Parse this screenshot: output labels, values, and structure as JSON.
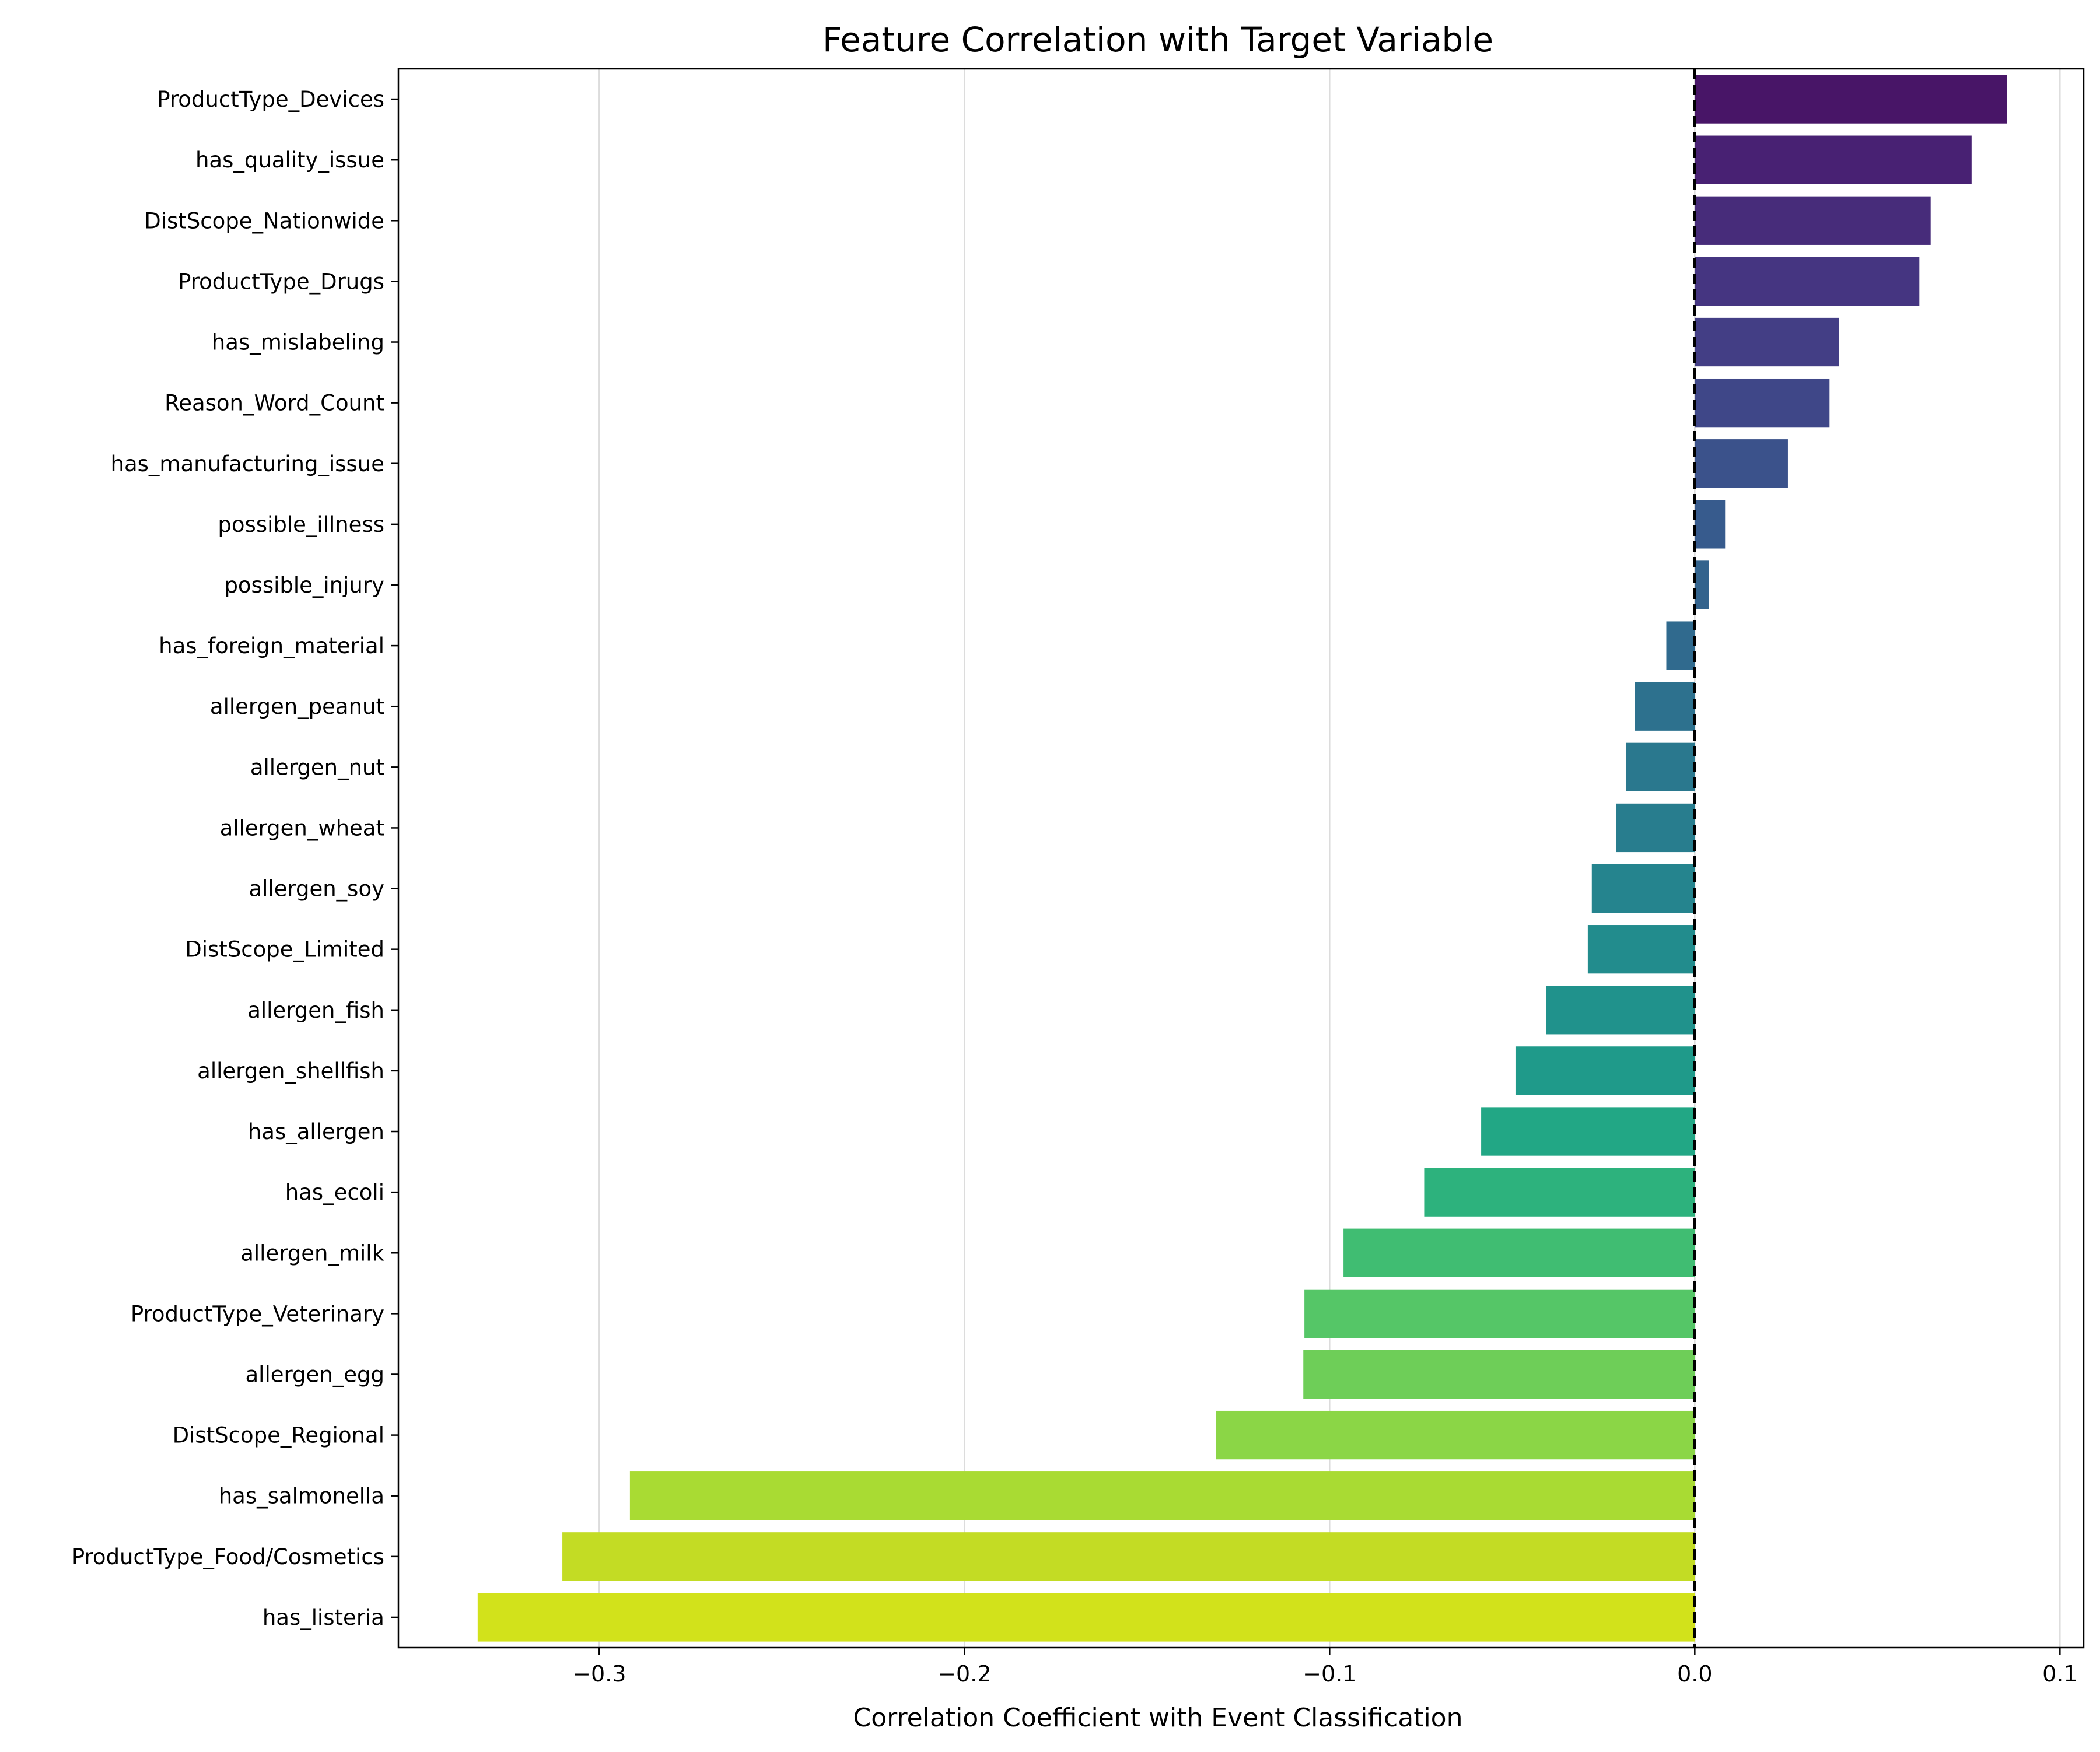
{
  "chart_data": {
    "type": "bar",
    "orientation": "horizontal",
    "title": "Feature Correlation with Target Variable",
    "xlabel": "Correlation Coefficient with Event Classification",
    "ylabel": "",
    "xlim": [
      -0.355,
      0.1065
    ],
    "xticks": [
      -0.3,
      -0.2,
      -0.1,
      0.0,
      0.1
    ],
    "xtick_labels": [
      "−0.3",
      "−0.2",
      "−0.1",
      "0.0",
      "0.1"
    ],
    "grid": "x",
    "reference_line": 0.0,
    "colormap": "viridis",
    "categories": [
      "ProductType_Devices",
      "has_quality_issue",
      "DistScope_Nationwide",
      "ProductType_Drugs",
      "has_mislabeling",
      "Reason_Word_Count",
      "has_manufacturing_issue",
      "possible_illness",
      "possible_injury",
      "has_foreign_material",
      "allergen_peanut",
      "allergen_nut",
      "allergen_wheat",
      "allergen_soy",
      "DistScope_Limited",
      "allergen_fish",
      "allergen_shellfish",
      "has_allergen",
      "has_ecoli",
      "allergen_milk",
      "ProductType_Veterinary",
      "allergen_egg",
      "DistScope_Regional",
      "has_salmonella",
      "ProductType_Food/Cosmetics",
      "has_listeria"
    ],
    "values": [
      0.0855,
      0.0758,
      0.0646,
      0.0615,
      0.0395,
      0.0369,
      0.0255,
      0.0083,
      0.0038,
      -0.0078,
      -0.0164,
      -0.0189,
      -0.0216,
      -0.0282,
      -0.0293,
      -0.0407,
      -0.0491,
      -0.0585,
      -0.0741,
      -0.0962,
      -0.1069,
      -0.1072,
      -0.1311,
      -0.2916,
      -0.3101,
      -0.3333
    ],
    "colors": [
      "#481567",
      "#482173",
      "#472c7a",
      "#453581",
      "#433e85",
      "#3f4788",
      "#3b528b",
      "#375b8d",
      "#33638d",
      "#306a8e",
      "#2d718e",
      "#2a788e",
      "#287d8e",
      "#25848e",
      "#228c8d",
      "#20928c",
      "#1f9a8a",
      "#22a785",
      "#2db27d",
      "#40bd72",
      "#55c667",
      "#6ece58",
      "#8bd646",
      "#a9db33",
      "#c3dc24",
      "#d2e21b"
    ]
  }
}
